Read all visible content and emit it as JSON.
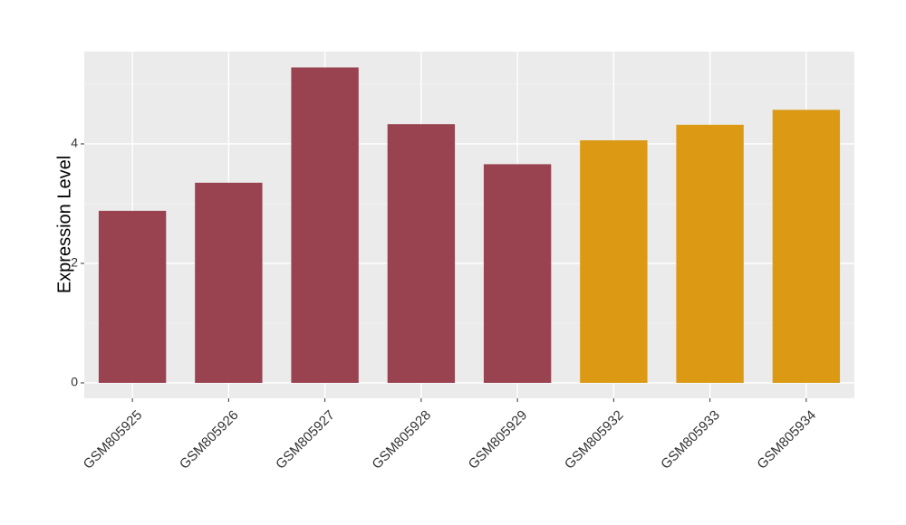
{
  "chart_data": {
    "type": "bar",
    "y_label": "Expression Level",
    "categories": [
      "GSM805925",
      "GSM805926",
      "GSM805927",
      "GSM805928",
      "GSM805929",
      "GSM805932",
      "GSM805933",
      "GSM805934"
    ],
    "values": [
      2.88,
      3.35,
      5.28,
      4.33,
      3.66,
      4.06,
      4.32,
      4.57
    ],
    "colors": [
      "#994250",
      "#994250",
      "#994250",
      "#994250",
      "#994250",
      "#db9914",
      "#db9914",
      "#db9914"
    ],
    "ylim": [
      -0.258,
      5.545
    ],
    "yticks": [
      0,
      2,
      4
    ],
    "minor_yticks": [
      1,
      3,
      5
    ],
    "grid": true
  }
}
